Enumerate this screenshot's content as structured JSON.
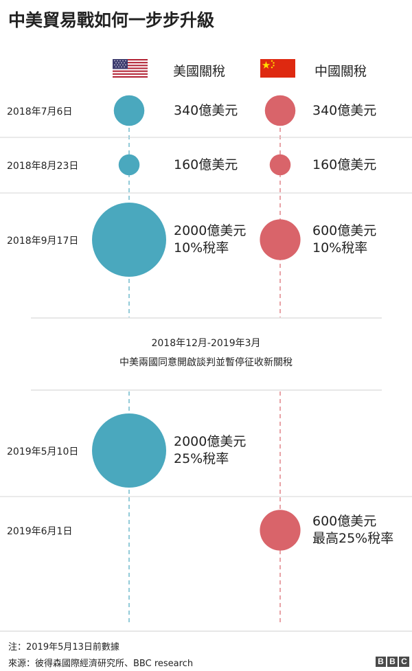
{
  "title": "中美貿易戰如何一步步升級",
  "columns": {
    "us": {
      "label": "美國關稅",
      "flag_icon": "us-flag-icon",
      "color": "#4aa8be"
    },
    "cn": {
      "label": "中國關稅",
      "flag_icon": "china-flag-icon",
      "color": "#d9646a"
    }
  },
  "chart_data": {
    "type": "bubble-timeline",
    "title": "中美貿易戰如何一步步升級",
    "value_unit": "億美元",
    "series": [
      {
        "name": "美國關稅",
        "color": "#4aa8be"
      },
      {
        "name": "中國關稅",
        "color": "#d9646a"
      }
    ],
    "events": [
      {
        "date": "2018年7月6日",
        "us": {
          "amount": 340,
          "lines": [
            "340億美元"
          ]
        },
        "cn": {
          "amount": 340,
          "lines": [
            "340億美元"
          ]
        }
      },
      {
        "date": "2018年8月23日",
        "us": {
          "amount": 160,
          "lines": [
            "160億美元"
          ]
        },
        "cn": {
          "amount": 160,
          "lines": [
            "160億美元"
          ]
        }
      },
      {
        "date": "2018年9月17日",
        "us": {
          "amount": 2000,
          "lines": [
            "2000億美元",
            "10%稅率"
          ]
        },
        "cn": {
          "amount": 600,
          "lines": [
            "600億美元",
            "10%稅率"
          ]
        }
      },
      {
        "date": "2019年5月10日",
        "us": {
          "amount": 2000,
          "lines": [
            "2000億美元",
            "25%稅率"
          ]
        },
        "cn": null
      },
      {
        "date": "2019年6月1日",
        "us": null,
        "cn": {
          "amount": 600,
          "lines": [
            "600億美元",
            "最高25%稅率"
          ]
        }
      }
    ],
    "pause": {
      "period": "2018年12月-2019年3月",
      "text": "中美兩國同意開啟談判並暫停征收新關稅"
    }
  },
  "footer": {
    "note": "注：2019年5月13日前數據",
    "source": "來源：彼得森國際經濟研究所、BBC research",
    "brand": [
      "B",
      "B",
      "C"
    ]
  }
}
